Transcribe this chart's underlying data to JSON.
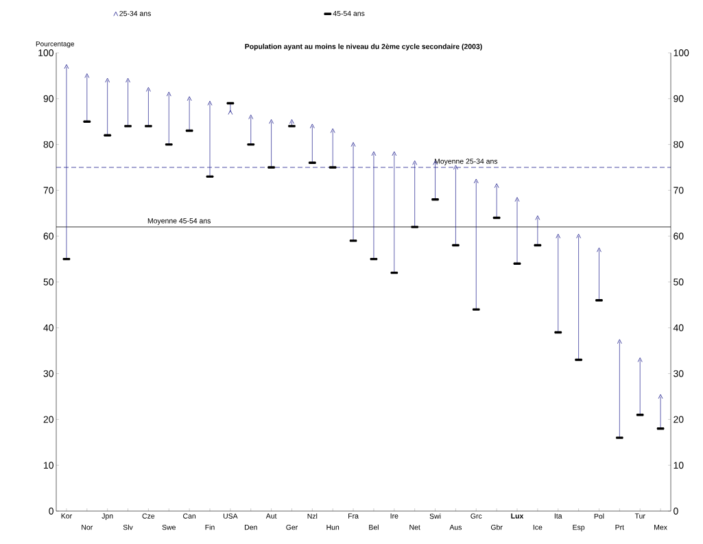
{
  "chart_data": {
    "type": "scatter",
    "title": "Population ayant au moins le niveau du 2ème cycle secondaire (2003)",
    "ylabel": "Pourcentage",
    "categories": [
      "Kor",
      "Nor",
      "Jpn",
      "Slv",
      "Cze",
      "Swe",
      "Can",
      "Fin",
      "USA",
      "Den",
      "Aut",
      "Ger",
      "Nzl",
      "Hun",
      "Fra",
      "Bel",
      "Ire",
      "Net",
      "Swi",
      "Aus",
      "Grc",
      "Gbr",
      "**Lux**",
      "Ice",
      "Ita",
      "Esp",
      "Pol",
      "Prt",
      "Tur",
      "Mex"
    ],
    "series": [
      {
        "name": "25-34 ans",
        "color": "#1c1c8c",
        "values": [
          97,
          95,
          94,
          94,
          92,
          91,
          90,
          89,
          87,
          86,
          85,
          85,
          84,
          83,
          80,
          78,
          78,
          76,
          76,
          75,
          72,
          71,
          68,
          64,
          60,
          60,
          57,
          37,
          33,
          25
        ]
      },
      {
        "name": "45-54 ans",
        "color": "#000000",
        "values": [
          55,
          85,
          82,
          84,
          84,
          80,
          83,
          73,
          89,
          80,
          75,
          84,
          76,
          75,
          59,
          55,
          52,
          62,
          68,
          58,
          44,
          64,
          54,
          58,
          39,
          33,
          46,
          16,
          21,
          18
        ]
      }
    ],
    "ylim": [
      0,
      100
    ],
    "yticks": [
      0,
      10,
      20,
      30,
      40,
      50,
      60,
      70,
      80,
      90,
      100
    ],
    "y2lim": [
      0,
      100
    ],
    "y2ticks": [
      0,
      10,
      20,
      30,
      40,
      50,
      60,
      70,
      80,
      90,
      100
    ],
    "ref_lines": [
      {
        "axis": "y",
        "value": 75,
        "label": "Moyenne 25-34 ans",
        "color": "#1c1c8c",
        "line_style": "dashed"
      },
      {
        "axis": "y",
        "value": 62,
        "label": "Moyenne 45-54 ans",
        "color": "#000000",
        "line_style": "solid"
      }
    ],
    "legend": "top",
    "grid": false
  }
}
